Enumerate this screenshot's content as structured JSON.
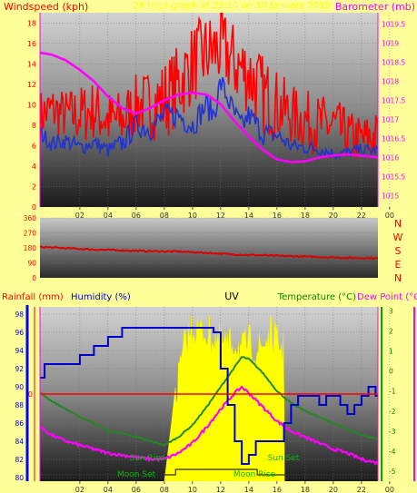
{
  "top_panel": {
    "title_left": "Windspeed (kph)",
    "title_center": "24 hour graph at 23:10 on 10 January 2015",
    "title_right": "Barometer (mb)"
  },
  "wind_dir_labels": [
    "N",
    "W",
    "S",
    "E",
    "N"
  ],
  "bottom_panel": {
    "label_rainfall": "Rainfall (mm)",
    "label_humidity": "Humidity (%)",
    "label_uv": "UV",
    "label_temperature": "Temperature (°C)",
    "label_dewpoint": "Dew Point (°C"
  },
  "annotations": [
    "Sun Rise",
    "Sun Set",
    "Moon Set",
    "Moon Rise"
  ],
  "colors": {
    "background": "#ffff99",
    "wind_gust": "#ff0000",
    "wind_avg": "#2233cc",
    "barometer": "#ff00ff",
    "wind_dir": "#dd0000",
    "humidity": "#0000cc",
    "uv": "#ffff00",
    "temperature": "#228822",
    "dewpoint": "#ff00ff",
    "zero_line": "#ff0000",
    "annotation_text": "#00bb00",
    "title_center": "#ffff00"
  },
  "chart_data": [
    {
      "type": "line",
      "name": "wind-barometer",
      "x_ticks": [
        "02",
        "04",
        "06",
        "08",
        "10",
        "12",
        "14",
        "16",
        "18",
        "20",
        "22",
        "00"
      ],
      "x_range_hours": [
        23.17,
        47.17
      ],
      "y_left": {
        "ticks": [
          0,
          2,
          4,
          6,
          8,
          10,
          12,
          14,
          16,
          18
        ],
        "range": [
          0,
          19
        ]
      },
      "y_right": {
        "ticks": [
          "1015",
          "1015.5",
          "1016",
          "1016.5",
          "1017",
          "1017.5",
          "1018",
          "1018.5",
          "1019",
          "1019.5"
        ],
        "range": [
          1014.7,
          1019.8
        ]
      },
      "series": [
        {
          "axis": "left",
          "style": "spiky",
          "x": [
            23.2,
            24,
            25,
            26,
            27,
            28,
            29,
            30,
            31,
            32,
            33,
            34,
            35,
            36,
            36.5,
            37,
            38,
            39,
            40,
            41,
            42,
            43,
            44,
            45,
            46,
            47.17
          ],
          "y": [
            9,
            9.5,
            9,
            9,
            9.5,
            8.5,
            8.5,
            10,
            10,
            10.5,
            12,
            14,
            15,
            15.5,
            15,
            14,
            13,
            11,
            10,
            9,
            8.5,
            8,
            8,
            7,
            6.5,
            7
          ],
          "amp": [
            2.5,
            2.5,
            2.5,
            3,
            3,
            3,
            3,
            3,
            3.5,
            4,
            4,
            4,
            4,
            4,
            4,
            4,
            4,
            4,
            3.5,
            3,
            3,
            3,
            3,
            2.5,
            2.5,
            2.5
          ]
        },
        {
          "axis": "left",
          "x": [
            23.2,
            24,
            25,
            26,
            27,
            28,
            29,
            30,
            31,
            32,
            33,
            34,
            35,
            35.5,
            36,
            37,
            37.5,
            38,
            39,
            40,
            41,
            42,
            43,
            44,
            45,
            46,
            47.17
          ],
          "y": [
            7.2,
            6.2,
            6.5,
            5.8,
            6.3,
            5.5,
            6.2,
            8,
            7.6,
            9,
            9,
            8,
            10,
            9,
            12.2,
            9,
            7.8,
            9,
            7.2,
            7,
            6,
            5.8,
            5.7,
            5.2,
            5.3,
            5.6,
            5.5
          ],
          "amp": [
            0.8,
            0.8,
            0.8,
            0.8,
            0.8,
            0.8,
            1,
            1.2,
            1.2,
            1.2,
            1.3,
            1.3,
            1.3,
            1.3,
            1.3,
            1.2,
            1.2,
            1.2,
            1.2,
            1,
            0.8,
            0.7,
            0.7,
            0.6,
            0.6,
            0.6,
            0.6
          ]
        },
        {
          "axis": "right",
          "x": [
            23.2,
            24,
            25,
            26,
            27,
            28,
            29,
            30,
            31,
            32,
            33,
            34,
            35,
            36,
            37,
            38,
            39,
            40,
            41,
            42,
            43,
            44,
            45,
            46,
            47.17
          ],
          "y": [
            1018.75,
            1018.7,
            1018.55,
            1018.3,
            1018,
            1017.6,
            1017.3,
            1017.15,
            1017.3,
            1017.5,
            1017.65,
            1017.7,
            1017.65,
            1017.4,
            1016.95,
            1016.55,
            1016.2,
            1015.95,
            1015.88,
            1015.9,
            1016,
            1016.05,
            1016.08,
            1016.05,
            1016
          ]
        }
      ]
    },
    {
      "type": "line",
      "name": "wind-direction",
      "y_ticks": [
        0,
        90,
        180,
        270,
        360
      ],
      "y_range": [
        0,
        360
      ],
      "series": [
        {
          "x": [
            23.2,
            25,
            27,
            29,
            31,
            33,
            35,
            37,
            39,
            41,
            43,
            45,
            47.17
          ],
          "y": [
            185,
            178,
            170,
            165,
            160,
            158,
            150,
            140,
            135,
            130,
            125,
            120,
            118
          ]
        }
      ]
    },
    {
      "type": "line",
      "name": "rain-humidity-uv-temp",
      "x_ticks": [
        "02",
        "04",
        "06",
        "08",
        "10",
        "12",
        "14",
        "16",
        "18",
        "20",
        "22",
        "00"
      ],
      "y_left": {
        "ticks": [
          80,
          82,
          84,
          86,
          88,
          90,
          92,
          94,
          96,
          98
        ],
        "range": [
          79.6,
          98.8
        ]
      },
      "y_right": {
        "ticks": [
          -5,
          -4,
          -3,
          -2,
          -1,
          0,
          1,
          2,
          3
        ],
        "range": [
          -5.5,
          3.2
        ]
      },
      "rain_axis_ticks": [
        "0"
      ],
      "series": [
        {
          "name": "Humidity (%)",
          "axis": "left",
          "style": "step",
          "x": [
            23.2,
            23.5,
            25,
            26,
            27,
            28,
            29,
            30,
            31,
            32,
            33,
            34,
            34.5,
            35,
            35.5,
            36,
            36.5,
            37,
            37.5,
            38,
            38.5,
            39,
            40,
            40.5,
            41,
            41.5,
            42,
            43,
            43.5,
            44,
            44.5,
            45,
            45.5,
            46,
            46.5,
            47,
            47.17
          ],
          "y": [
            91,
            92.5,
            92.5,
            93.5,
            94.5,
            95.5,
            96.5,
            96.5,
            96.5,
            96.5,
            96.5,
            96.5,
            96.5,
            96.5,
            96,
            92,
            88,
            84,
            81.5,
            82.5,
            84,
            84,
            84,
            86,
            88,
            89,
            89,
            88,
            89,
            89,
            88,
            87,
            88,
            89,
            90,
            89,
            89
          ]
        },
        {
          "name": "UV",
          "axis": "left",
          "style": "uv",
          "x": [
            32,
            32.5,
            33,
            33.5,
            34,
            35,
            36,
            36.5,
            37,
            37.5,
            38,
            38.5,
            39,
            39.5,
            40,
            40.5,
            40.53
          ],
          "y": [
            79.6,
            86,
            93,
            97,
            98.5,
            98,
            97,
            96.5,
            97,
            96,
            97,
            96,
            96.5,
            98,
            97,
            96,
            79.6
          ]
        },
        {
          "name": "Temperature (°C)",
          "axis": "right",
          "x": [
            23.2,
            24,
            25,
            26,
            27,
            28,
            29,
            30,
            31,
            32,
            33,
            34,
            35,
            36,
            37,
            37.5,
            38,
            39,
            40,
            41,
            42,
            43,
            44,
            45,
            46,
            47.17
          ],
          "y": [
            -1.1,
            -1.5,
            -1.9,
            -2.3,
            -2.6,
            -3,
            -3.1,
            -3.3,
            -3.5,
            -3.7,
            -3.3,
            -2.7,
            -1.8,
            -0.8,
            0.2,
            0.7,
            0.6,
            -0.1,
            -1,
            -1.6,
            -2,
            -2.3,
            -2.6,
            -2.9,
            -3.2,
            -3.4
          ]
        },
        {
          "name": "Dew Point (°C)",
          "axis": "right",
          "x": [
            23.2,
            24,
            25,
            26,
            27,
            28,
            29,
            30,
            31,
            32,
            33,
            34,
            35,
            36,
            37,
            37.5,
            38,
            39,
            40,
            41,
            42,
            43,
            44,
            45,
            46,
            47.17
          ],
          "y": [
            -2.8,
            -3.2,
            -3.5,
            -3.7,
            -3.9,
            -4.1,
            -4.2,
            -4.3,
            -4.4,
            -4.4,
            -4.1,
            -3.6,
            -2.8,
            -1.9,
            -1.1,
            -0.8,
            -1.1,
            -1.8,
            -2.5,
            -3,
            -3.3,
            -3.6,
            -3.9,
            -4.1,
            -4.4,
            -4.6
          ]
        }
      ]
    }
  ]
}
